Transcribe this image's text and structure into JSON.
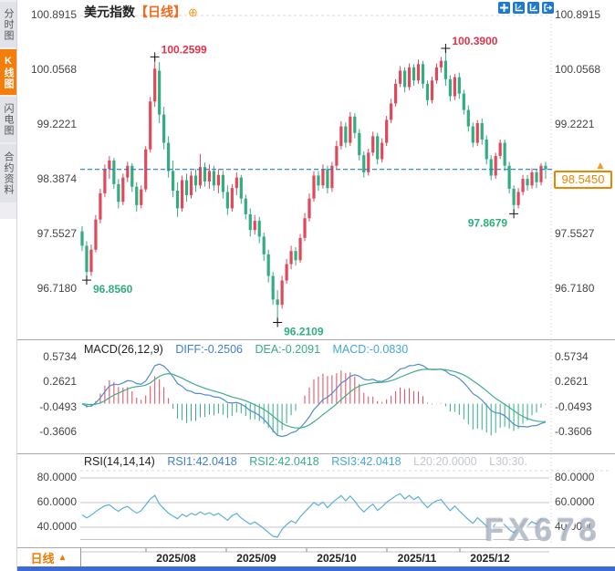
{
  "sidebar": {
    "items": [
      {
        "label": "分时图",
        "active": false
      },
      {
        "label": "K线图",
        "active": true
      },
      {
        "label": "闪电图",
        "active": false
      },
      {
        "label": "合约资料",
        "active": false
      }
    ]
  },
  "header": {
    "title": "美元指数",
    "period_tag": "【日线】",
    "add_symbol": "⊕"
  },
  "toolbar": {
    "icons": [
      "crosshair",
      "axis-zoom",
      "axis-pan",
      "exit-chart"
    ]
  },
  "main_chart": {
    "y_axis_labels": [
      "100.8915",
      "100.0568",
      "99.2221",
      "98.3874",
      "97.5527",
      "96.7180"
    ],
    "current_price_label": "98.5450",
    "current_price_arrow": "▲"
  },
  "macd": {
    "header": {
      "name": "MACD(26,12,9)",
      "diff": "DIFF:-0.2506",
      "dea": "DEA:-0.2091",
      "macd": "MACD:-0.0830"
    },
    "y_axis_labels": [
      "0.5734",
      "0.2621",
      "-0.0493",
      "-0.3606"
    ]
  },
  "rsi": {
    "header": {
      "name": "RSI(14,14,14)",
      "rsi1": "RSI1:42.0418",
      "rsi2": "RSI2:42.0418",
      "rsi3": "RSI3:42.0418",
      "l20": "L20:20.0000",
      "l30": "L30:30."
    },
    "y_axis_labels": [
      "80.0000",
      "60.0000",
      "40.0000"
    ]
  },
  "x_axis": {
    "labels": [
      "2025/08",
      "2025/09",
      "2025/10",
      "2025/11",
      "2025/12"
    ]
  },
  "bottom_bar": {
    "period_label": "日线",
    "arrow": "▲"
  },
  "watermark": "FX678",
  "colors": {
    "up": "#e0485c",
    "down": "#31ad80",
    "price_line": "#1f78d8",
    "accent_orange": "#f08300",
    "diff_line": "#4f8bd5",
    "dea_line": "#3fae85",
    "rsi_line": "#5cb0d8",
    "annotation_high": "#e0324a",
    "annotation_low": "#2fae7e"
  },
  "chart_data": {
    "type": "candlestick",
    "title": "美元指数 日线 (US Dollar Index, daily)",
    "x_labels": [
      "2025/08",
      "2025/09",
      "2025/10",
      "2025/11",
      "2025/12"
    ],
    "price_axis_ticks": [
      100.8915,
      100.0568,
      99.2221,
      98.3874,
      97.5527,
      96.718
    ],
    "price_range": [
      95.93,
      101.0
    ],
    "current_price": 98.545,
    "markers": [
      {
        "index": 1,
        "kind": "low",
        "value": 96.856,
        "label": "96.8560"
      },
      {
        "index": 16,
        "kind": "high",
        "value": 100.2599,
        "label": "100.2599"
      },
      {
        "index": 43,
        "kind": "low",
        "value": 96.2109,
        "label": "96.2109"
      },
      {
        "index": 80,
        "kind": "high",
        "value": 100.39,
        "label": "100.3900"
      },
      {
        "index": 95,
        "kind": "low",
        "value": 97.8679,
        "label": "97.8679",
        "side": "left"
      }
    ],
    "candles": [
      [
        97.6,
        97.68,
        97.3,
        97.38
      ],
      [
        97.38,
        97.45,
        96.856,
        96.98
      ],
      [
        96.98,
        97.4,
        96.92,
        97.32
      ],
      [
        97.32,
        97.85,
        97.28,
        97.78
      ],
      [
        97.78,
        98.25,
        97.72,
        98.18
      ],
      [
        98.18,
        98.62,
        98.12,
        98.55
      ],
      [
        98.55,
        98.75,
        98.4,
        98.68
      ],
      [
        98.68,
        98.72,
        98.25,
        98.32
      ],
      [
        98.32,
        98.4,
        97.95,
        98.05
      ],
      [
        98.05,
        98.48,
        98.0,
        98.42
      ],
      [
        98.42,
        98.66,
        98.35,
        98.6
      ],
      [
        98.6,
        98.64,
        98.2,
        98.28
      ],
      [
        98.28,
        98.35,
        97.9,
        98.0
      ],
      [
        98.0,
        98.3,
        97.95,
        98.24
      ],
      [
        98.24,
        98.9,
        98.2,
        98.85
      ],
      [
        98.85,
        99.65,
        98.8,
        99.58
      ],
      [
        99.58,
        100.2599,
        99.5,
        100.08
      ],
      [
        100.05,
        100.18,
        99.25,
        99.38
      ],
      [
        99.38,
        99.5,
        98.85,
        98.95
      ],
      [
        98.95,
        99.05,
        98.42,
        98.52
      ],
      [
        98.52,
        98.68,
        98.12,
        98.22
      ],
      [
        98.22,
        98.35,
        97.82,
        97.95
      ],
      [
        97.95,
        98.45,
        97.9,
        98.38
      ],
      [
        98.38,
        98.48,
        98.05,
        98.15
      ],
      [
        98.15,
        98.52,
        98.1,
        98.45
      ],
      [
        98.45,
        98.55,
        98.2,
        98.3
      ],
      [
        98.3,
        98.78,
        98.25,
        98.58
      ],
      [
        98.58,
        98.65,
        98.28,
        98.36
      ],
      [
        98.36,
        98.62,
        98.25,
        98.52
      ],
      [
        98.52,
        98.6,
        98.22,
        98.3
      ],
      [
        98.3,
        98.55,
        98.18,
        98.46
      ],
      [
        98.46,
        98.52,
        98.1,
        98.2
      ],
      [
        98.2,
        98.3,
        97.85,
        97.95
      ],
      [
        97.95,
        98.32,
        97.9,
        98.26
      ],
      [
        98.26,
        98.5,
        98.15,
        98.42
      ],
      [
        98.42,
        98.46,
        98.02,
        98.1
      ],
      [
        98.1,
        98.16,
        97.78,
        97.86
      ],
      [
        97.86,
        97.95,
        97.52,
        97.62
      ],
      [
        97.62,
        97.85,
        97.55,
        97.76
      ],
      [
        97.76,
        97.82,
        97.42,
        97.52
      ],
      [
        97.52,
        97.58,
        97.15,
        97.25
      ],
      [
        97.25,
        97.32,
        96.82,
        96.92
      ],
      [
        96.92,
        96.98,
        96.48,
        96.56
      ],
      [
        96.56,
        96.7,
        96.2109,
        96.48
      ],
      [
        96.48,
        96.92,
        96.42,
        96.85
      ],
      [
        96.85,
        97.18,
        96.8,
        97.1
      ],
      [
        97.1,
        97.38,
        97.02,
        97.3
      ],
      [
        97.3,
        97.36,
        97.08,
        97.16
      ],
      [
        97.16,
        97.56,
        97.12,
        97.5
      ],
      [
        97.5,
        97.88,
        97.45,
        97.8
      ],
      [
        97.8,
        98.18,
        97.75,
        98.1
      ],
      [
        98.1,
        98.52,
        98.05,
        98.45
      ],
      [
        98.45,
        98.52,
        98.22,
        98.3
      ],
      [
        98.3,
        98.62,
        98.25,
        98.55
      ],
      [
        98.55,
        98.6,
        98.18,
        98.26
      ],
      [
        98.26,
        98.66,
        98.2,
        98.6
      ],
      [
        98.6,
        98.98,
        98.55,
        98.9
      ],
      [
        98.9,
        99.28,
        98.85,
        99.2
      ],
      [
        99.2,
        99.26,
        98.88,
        98.95
      ],
      [
        98.95,
        99.42,
        98.9,
        99.35
      ],
      [
        99.35,
        99.4,
        99.02,
        99.1
      ],
      [
        99.1,
        99.16,
        98.68,
        98.76
      ],
      [
        98.76,
        98.82,
        98.42,
        98.5
      ],
      [
        98.5,
        98.86,
        98.45,
        98.8
      ],
      [
        98.8,
        99.12,
        98.75,
        99.05
      ],
      [
        99.05,
        99.1,
        98.62,
        98.7
      ],
      [
        98.7,
        99.02,
        98.65,
        98.95
      ],
      [
        98.95,
        99.36,
        98.9,
        99.3
      ],
      [
        99.3,
        99.62,
        99.25,
        99.55
      ],
      [
        99.55,
        99.92,
        99.5,
        99.85
      ],
      [
        99.85,
        100.12,
        99.8,
        100.05
      ],
      [
        100.05,
        100.1,
        99.72,
        99.8
      ],
      [
        99.8,
        100.16,
        99.75,
        100.1
      ],
      [
        100.1,
        100.15,
        99.82,
        99.9
      ],
      [
        99.9,
        100.22,
        99.85,
        100.15
      ],
      [
        100.15,
        100.2,
        99.78,
        99.85
      ],
      [
        99.85,
        99.9,
        99.52,
        99.6
      ],
      [
        99.6,
        99.96,
        99.55,
        99.9
      ],
      [
        99.9,
        100.16,
        99.85,
        100.1
      ],
      [
        100.1,
        100.26,
        100.02,
        100.2
      ],
      [
        100.2,
        100.39,
        99.82,
        99.92
      ],
      [
        99.92,
        99.98,
        99.58,
        99.66
      ],
      [
        99.66,
        100.0,
        99.6,
        99.95
      ],
      [
        99.95,
        100.02,
        99.62,
        99.7
      ],
      [
        99.7,
        99.76,
        99.38,
        99.45
      ],
      [
        99.45,
        99.52,
        99.12,
        99.2
      ],
      [
        99.2,
        99.26,
        98.88,
        98.95
      ],
      [
        98.95,
        99.3,
        98.9,
        99.25
      ],
      [
        99.25,
        99.32,
        98.92,
        99.0
      ],
      [
        99.0,
        99.06,
        98.62,
        98.7
      ],
      [
        98.7,
        98.76,
        98.38,
        98.45
      ],
      [
        98.45,
        98.8,
        98.4,
        98.75
      ],
      [
        98.75,
        99.0,
        98.7,
        98.95
      ],
      [
        98.95,
        99.0,
        98.52,
        98.6
      ],
      [
        98.6,
        98.66,
        98.18,
        98.25
      ],
      [
        98.25,
        98.3,
        97.8679,
        98.0
      ],
      [
        98.0,
        98.26,
        97.95,
        98.2
      ],
      [
        98.2,
        98.46,
        98.15,
        98.4
      ],
      [
        98.4,
        98.46,
        98.22,
        98.3
      ],
      [
        98.3,
        98.56,
        98.25,
        98.5
      ],
      [
        98.5,
        98.55,
        98.26,
        98.35
      ],
      [
        98.35,
        98.64,
        98.3,
        98.6
      ],
      [
        98.6,
        98.66,
        98.4,
        98.545
      ]
    ],
    "indicators": {
      "macd": {
        "params": [
          26,
          12,
          9
        ],
        "diff": -0.2506,
        "dea": -0.2091,
        "macd": -0.083,
        "axis_ticks": [
          0.5734,
          0.2621,
          -0.0493,
          -0.3606
        ]
      },
      "rsi": {
        "params": [
          14,
          14,
          14
        ],
        "rsi1": 42.0418,
        "rsi2": 42.0418,
        "rsi3": 42.0418,
        "levels": [
          80,
          60,
          40,
          30,
          20
        ],
        "axis_ticks": [
          80,
          60,
          40
        ]
      }
    }
  }
}
